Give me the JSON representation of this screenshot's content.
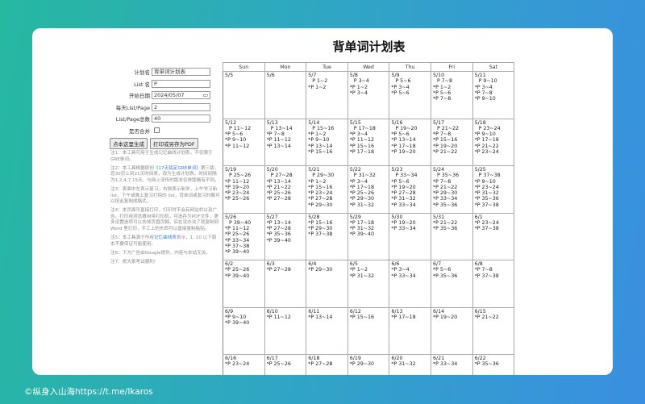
{
  "title": "背单词计划表",
  "form": {
    "plan_name_label": "计划名",
    "plan_name_value": "背单词计划表",
    "list_name_label": "List 名",
    "list_name_value": "P",
    "start_date_label": "开始日期",
    "start_date_value": "2024/05/07",
    "per_day_label": "每天List/Page",
    "per_day_value": "2",
    "total_label": "List/Page总数",
    "total_value": "40",
    "merge_label": "是否合并",
    "merge_checked": false,
    "generate_button": "点本这里生成",
    "print_button": "打印或另存为PDF"
  },
  "notes": [
    {
      "text": "注1：本工具可用于生成记忆曲线计划表，不仅限于GRE单词。"
    },
    {
      "text": "注2：本工具根据原创",
      "link": "《17天搞定GRE单词》",
      "text2": "第三版，您30页上到21天时间表，改为生成计划表。时间间隔为1,2,4,7,15天。与网上流传的版本仅排版略有不同。"
    },
    {
      "text": "注3：表面中左表示复习，右侧表示新学，上午学习新 list，下午或晚上复习打钩的 list，背单词或复习时都可以按此复制成格式。"
    },
    {
      "text": "注4：本页面可直接打印，打印时不会有网站栏以及广告。打印用浏览器自带打印机，可选存为PDF文件，更多设置选项可以去掉页眉页脚。实在没办法了就复制到 Word 里打印，手工上的东西可以直接复制粘贴。"
    },
    {
      "text": "注5：本工具源于作用",
      "link": "记忆曲线表",
      "text2": "表示，1, 10 以下版本不要保证可能使用。"
    },
    {
      "text": "注6：下方广告由Google提供，内容与本站无关。"
    },
    {
      "text": "注7：祝大家考试顺利!"
    }
  ],
  "calendar": {
    "weekdays": [
      "Sun",
      "Mon",
      "Tue",
      "Wed",
      "Thu",
      "Fri",
      "Sat"
    ],
    "weeks": [
      [
        {
          "date": "5/5",
          "items": []
        },
        {
          "date": "5/6",
          "items": []
        },
        {
          "date": "5/7",
          "items": [
            "P 1~2",
            "*P 1~2"
          ]
        },
        {
          "date": "5/8",
          "items": [
            "P 3~4",
            "*P 1~2",
            "*P 3~4"
          ]
        },
        {
          "date": "5/9",
          "items": [
            "P 5~6",
            "*P 3~4",
            "*P 5~6"
          ]
        },
        {
          "date": "5/10",
          "items": [
            "P 7~8",
            "*P 1~2",
            "*P 5~6",
            "*P 7~8"
          ]
        },
        {
          "date": "5/11",
          "items": [
            "P 9~10",
            "*P 3~4",
            "*P 7~8",
            "*P 9~10"
          ]
        }
      ],
      [
        {
          "date": "5/12",
          "items": [
            "P 11~12",
            "*P 5~6",
            "*P 9~10",
            "*P 11~12"
          ]
        },
        {
          "date": "5/13",
          "items": [
            "P 13~14",
            "*P 7~8",
            "*P 11~12",
            "*P 13~14"
          ]
        },
        {
          "date": "5/14",
          "items": [
            "P 15~16",
            "*P 1~2",
            "*P 9~10",
            "*P 13~14",
            "*P 15~16"
          ]
        },
        {
          "date": "5/15",
          "items": [
            "P 17~18",
            "*P 3~4",
            "*P 11~12",
            "*P 15~16",
            "*P 17~18"
          ]
        },
        {
          "date": "5/16",
          "items": [
            "P 19~20",
            "*P 5~6",
            "*P 13~14",
            "*P 17~18",
            "*P 19~20"
          ]
        },
        {
          "date": "5/17",
          "items": [
            "P 21~22",
            "*P 7~8",
            "*P 15~16",
            "*P 19~20",
            "*P 21~22"
          ]
        },
        {
          "date": "5/18",
          "items": [
            "P 23~24",
            "*P 9~10",
            "*P 17~18",
            "*P 21~22",
            "*P 23~24"
          ]
        }
      ],
      [
        {
          "date": "5/19",
          "items": [
            "P 25~26",
            "*P 11~12",
            "*P 19~20",
            "*P 23~24",
            "*P 25~26"
          ]
        },
        {
          "date": "5/20",
          "items": [
            "P 27~28",
            "*P 13~14",
            "*P 21~22",
            "*P 25~26",
            "*P 27~28"
          ]
        },
        {
          "date": "5/21",
          "items": [
            "P 29~30",
            "*P 1~2",
            "*P 15~16",
            "*P 23~24",
            "*P 27~28",
            "*P 29~30"
          ]
        },
        {
          "date": "5/22",
          "items": [
            "P 31~32",
            "*P 3~4",
            "*P 17~18",
            "*P 25~26",
            "*P 29~30",
            "*P 31~32"
          ]
        },
        {
          "date": "5/23",
          "items": [
            "P 33~34",
            "*P 5~6",
            "*P 19~20",
            "*P 27~28",
            "*P 31~32",
            "*P 33~34"
          ]
        },
        {
          "date": "5/24",
          "items": [
            "P 35~36",
            "*P 7~8",
            "*P 21~22",
            "*P 29~30",
            "*P 33~34",
            "*P 35~36"
          ]
        },
        {
          "date": "5/25",
          "items": [
            "P 37~38",
            "*P 9~10",
            "*P 23~24",
            "*P 31~32",
            "*P 35~36",
            "*P 37~38"
          ]
        }
      ],
      [
        {
          "date": "5/26",
          "items": [
            "P 39~40",
            "*P 11~12",
            "*P 25~26",
            "*P 33~34",
            "*P 37~38",
            "*P 39~40"
          ]
        },
        {
          "date": "5/27",
          "items": [
            "*P 13~14",
            "*P 27~28",
            "*P 35~36",
            "*P 39~40"
          ]
        },
        {
          "date": "5/28",
          "items": [
            "*P 15~16",
            "*P 29~30",
            "*P 37~38"
          ]
        },
        {
          "date": "5/29",
          "items": [
            "*P 17~18",
            "*P 31~32",
            "*P 39~40"
          ]
        },
        {
          "date": "5/30",
          "items": [
            "*P 19~20",
            "*P 33~34"
          ]
        },
        {
          "date": "5/31",
          "items": [
            "*P 21~22",
            "*P 35~36"
          ]
        },
        {
          "date": "6/1",
          "items": [
            "*P 23~24",
            "*P 37~38"
          ]
        }
      ],
      [
        {
          "date": "6/2",
          "items": [
            "*P 25~26",
            "*P 39~40"
          ]
        },
        {
          "date": "6/3",
          "items": [
            "*P 27~28"
          ]
        },
        {
          "date": "6/4",
          "items": [
            "*P 29~30"
          ]
        },
        {
          "date": "6/5",
          "items": [
            "*P 1~2",
            "*P 31~32"
          ]
        },
        {
          "date": "6/6",
          "items": [
            "*P 3~4",
            "*P 33~34"
          ]
        },
        {
          "date": "6/7",
          "items": [
            "*P 5~6",
            "*P 35~36"
          ]
        },
        {
          "date": "6/8",
          "items": [
            "*P 7~8",
            "*P 37~38"
          ]
        }
      ],
      [
        {
          "date": "6/9",
          "items": [
            "*P 9~10",
            "*P 39~40"
          ]
        },
        {
          "date": "6/10",
          "items": [
            "*P 11~12"
          ]
        },
        {
          "date": "6/11",
          "items": [
            "*P 13~14"
          ]
        },
        {
          "date": "6/12",
          "items": [
            "*P 15~16"
          ]
        },
        {
          "date": "6/13",
          "items": [
            "*P 17~18"
          ]
        },
        {
          "date": "6/14",
          "items": [
            "*P 19~20"
          ]
        },
        {
          "date": "6/15",
          "items": [
            "*P 21~22"
          ]
        }
      ],
      [
        {
          "date": "6/16",
          "items": [
            "*P 23~24"
          ]
        },
        {
          "date": "6/17",
          "items": [
            "*P 25~26"
          ]
        },
        {
          "date": "6/18",
          "items": [
            "*P 27~28"
          ]
        },
        {
          "date": "6/19",
          "items": [
            "*P 29~30"
          ]
        },
        {
          "date": "6/20",
          "items": [
            "*P 31~32"
          ]
        },
        {
          "date": "6/21",
          "items": [
            "*P 33~34"
          ]
        },
        {
          "date": "6/22",
          "items": [
            "*P 35~36"
          ]
        }
      ]
    ]
  },
  "footer": "©纵身入山海https://t.me/Ikaros"
}
